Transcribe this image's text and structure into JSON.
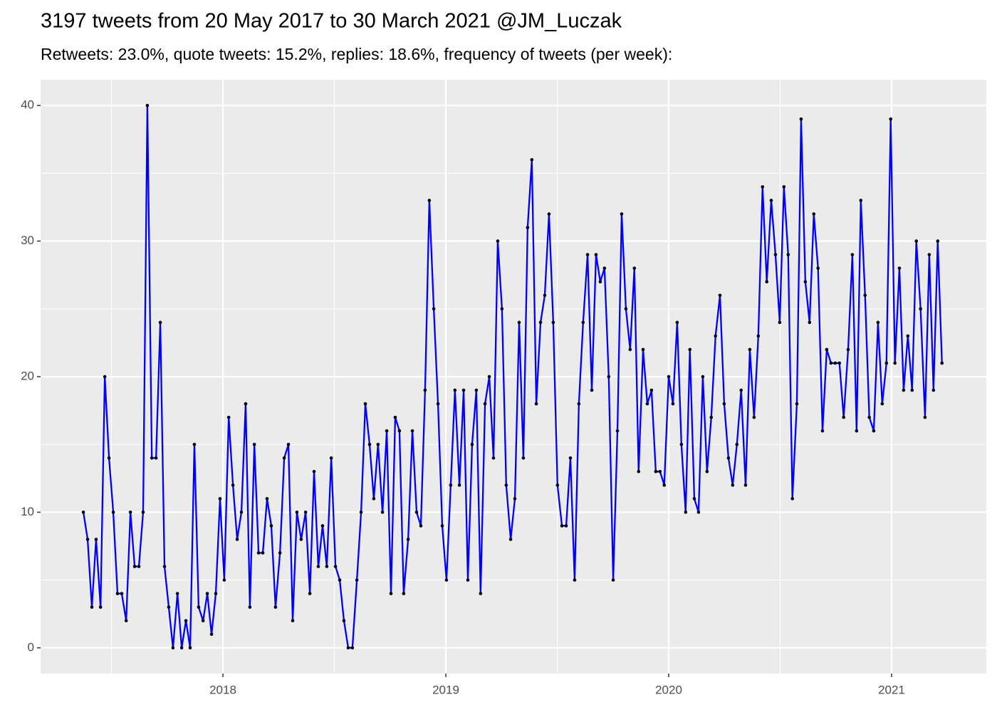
{
  "chart_data": {
    "type": "line",
    "title": "3197 tweets from 20 May 2017 to 30 March 2021 @JM_Luczak",
    "subtitle": "Retweets: 23.0%, quote tweets: 15.2%, replies: 18.6%, frequency of tweets (per week):",
    "color": "#0000ff",
    "point_color": "#000000",
    "grid": true,
    "xlim": [
      2017.182,
      2021.425
    ],
    "xticks": [
      2018,
      2019,
      2020,
      2021
    ],
    "ylim": [
      -1.9,
      41.9
    ],
    "yticks": [
      0,
      10,
      20,
      30,
      40
    ],
    "x": [
      2017.374,
      2017.393,
      2017.412,
      2017.431,
      2017.451,
      2017.47,
      2017.489,
      2017.508,
      2017.527,
      2017.546,
      2017.566,
      2017.585,
      2017.604,
      2017.623,
      2017.642,
      2017.661,
      2017.681,
      2017.7,
      2017.719,
      2017.738,
      2017.757,
      2017.776,
      2017.796,
      2017.815,
      2017.834,
      2017.853,
      2017.872,
      2017.891,
      2017.911,
      2017.93,
      2017.949,
      2017.968,
      2017.987,
      2018.006,
      2018.026,
      2018.045,
      2018.064,
      2018.083,
      2018.102,
      2018.121,
      2018.141,
      2018.16,
      2018.179,
      2018.198,
      2018.217,
      2018.236,
      2018.256,
      2018.275,
      2018.294,
      2018.313,
      2018.332,
      2018.351,
      2018.371,
      2018.39,
      2018.409,
      2018.428,
      2018.447,
      2018.466,
      2018.486,
      2018.505,
      2018.524,
      2018.543,
      2018.562,
      2018.581,
      2018.601,
      2018.62,
      2018.639,
      2018.658,
      2018.677,
      2018.696,
      2018.716,
      2018.735,
      2018.754,
      2018.773,
      2018.792,
      2018.811,
      2018.831,
      2018.85,
      2018.869,
      2018.888,
      2018.907,
      2018.926,
      2018.946,
      2018.965,
      2018.984,
      2019.003,
      2019.022,
      2019.041,
      2019.061,
      2019.08,
      2019.099,
      2019.118,
      2019.137,
      2019.156,
      2019.176,
      2019.195,
      2019.214,
      2019.233,
      2019.252,
      2019.271,
      2019.291,
      2019.31,
      2019.329,
      2019.348,
      2019.367,
      2019.386,
      2019.406,
      2019.425,
      2019.444,
      2019.463,
      2019.482,
      2019.501,
      2019.521,
      2019.54,
      2019.559,
      2019.578,
      2019.597,
      2019.616,
      2019.636,
      2019.655,
      2019.674,
      2019.693,
      2019.712,
      2019.731,
      2019.751,
      2019.77,
      2019.789,
      2019.808,
      2019.827,
      2019.846,
      2019.865,
      2019.885,
      2019.904,
      2019.923,
      2019.942,
      2019.961,
      2019.98,
      2020.0,
      2020.019,
      2020.038,
      2020.057,
      2020.076,
      2020.095,
      2020.115,
      2020.134,
      2020.153,
      2020.172,
      2020.191,
      2020.21,
      2020.23,
      2020.249,
      2020.268,
      2020.287,
      2020.306,
      2020.325,
      2020.345,
      2020.364,
      2020.383,
      2020.402,
      2020.421,
      2020.44,
      2020.46,
      2020.479,
      2020.498,
      2020.517,
      2020.536,
      2020.555,
      2020.575,
      2020.594,
      2020.613,
      2020.632,
      2020.651,
      2020.67,
      2020.69,
      2020.709,
      2020.728,
      2020.747,
      2020.766,
      2020.785,
      2020.805,
      2020.824,
      2020.843,
      2020.862,
      2020.881,
      2020.9,
      2020.92,
      2020.939,
      2020.958,
      2020.977,
      2020.996,
      2021.015,
      2021.035,
      2021.054,
      2021.073,
      2021.092,
      2021.111,
      2021.13,
      2021.15,
      2021.169,
      2021.188,
      2021.207,
      2021.226
    ],
    "values": [
      10,
      8,
      3,
      8,
      3,
      20,
      14,
      10,
      4,
      4,
      2,
      10,
      6,
      6,
      10,
      40,
      14,
      14,
      24,
      6,
      3,
      0,
      4,
      0,
      2,
      0,
      15,
      3,
      2,
      4,
      1,
      4,
      11,
      5,
      17,
      12,
      8,
      10,
      18,
      3,
      15,
      7,
      7,
      11,
      9,
      3,
      7,
      14,
      15,
      2,
      10,
      8,
      10,
      4,
      13,
      6,
      9,
      6,
      14,
      6,
      5,
      2,
      0,
      0,
      5,
      10,
      18,
      15,
      11,
      15,
      10,
      16,
      4,
      17,
      16,
      4,
      8,
      16,
      10,
      9,
      19,
      33,
      25,
      18,
      9,
      5,
      12,
      19,
      12,
      19,
      5,
      15,
      19,
      4,
      18,
      20,
      14,
      30,
      25,
      12,
      8,
      11,
      24,
      14,
      31,
      36,
      18,
      24,
      26,
      32,
      24,
      12,
      9,
      9,
      14,
      5,
      18,
      24,
      29,
      19,
      29,
      27,
      28,
      20,
      5,
      16,
      32,
      25,
      22,
      28,
      13,
      22,
      18,
      19,
      13,
      13,
      12,
      20,
      18,
      24,
      15,
      10,
      22,
      11,
      10,
      20,
      13,
      17,
      23,
      26,
      18,
      14,
      12,
      15,
      19,
      12,
      22,
      17,
      23,
      34,
      27,
      33,
      29,
      24,
      34,
      29,
      11,
      18,
      39,
      27,
      24,
      32,
      28,
      16,
      22,
      21,
      21,
      21,
      17,
      22,
      29,
      16,
      33,
      26,
      17,
      16,
      24,
      18,
      21,
      39,
      21,
      28,
      19,
      23,
      19,
      30,
      25,
      17,
      29,
      19,
      30,
      21
    ]
  }
}
